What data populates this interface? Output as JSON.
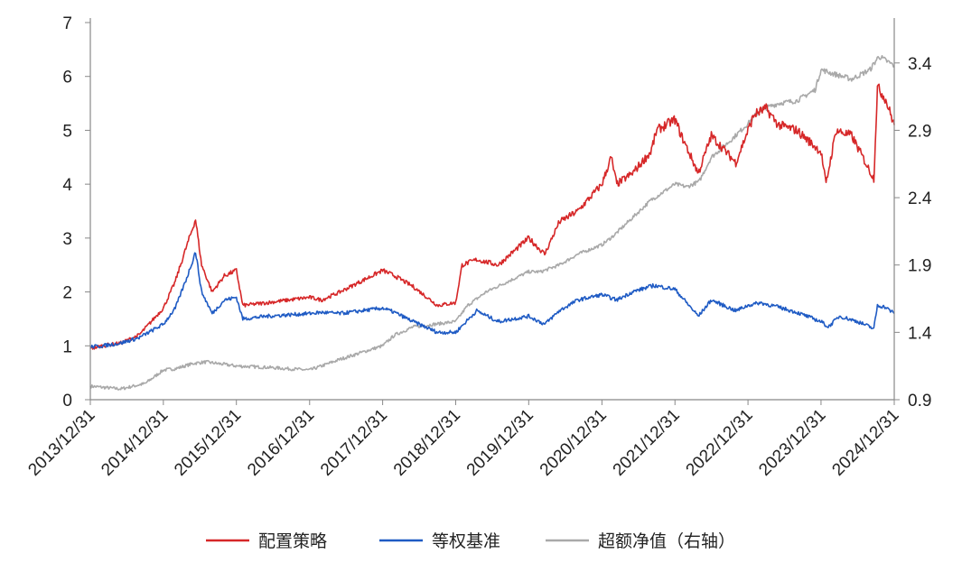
{
  "chart_data": {
    "type": "line",
    "title": "",
    "xlabel": "",
    "ylabel": "",
    "x_ticks": [
      "2013/12/31",
      "2014/12/31",
      "2015/12/31",
      "2016/12/31",
      "2017/12/31",
      "2018/12/31",
      "2019/12/31",
      "2020/12/31",
      "2021/12/31",
      "2022/12/31",
      "2023/12/31",
      "2024/12/31"
    ],
    "x_range": [
      "2013/12/31",
      "2024/12/31"
    ],
    "y_left": {
      "range": [
        0,
        7
      ],
      "ticks": [
        "0",
        "1",
        "2",
        "3",
        "4",
        "5",
        "6",
        "7"
      ]
    },
    "y_right": {
      "range": [
        0.9,
        3.7
      ],
      "ticks": [
        "0.9",
        "1.4",
        "1.9",
        "2.4",
        "2.9",
        "3.4"
      ]
    },
    "grid": false,
    "legend_position": "bottom",
    "series": [
      {
        "name": "配置策略",
        "color": "#d62728",
        "axis": "left",
        "points": [
          [
            "2013/12/31",
            0.95
          ],
          [
            "2014/03/01",
            1.0
          ],
          [
            "2014/06/01",
            1.05
          ],
          [
            "2014/09/01",
            1.2
          ],
          [
            "2014/12/31",
            1.7
          ],
          [
            "2015/03/01",
            2.2
          ],
          [
            "2015/05/01",
            2.9
          ],
          [
            "2015/06/10",
            3.35
          ],
          [
            "2015/07/10",
            2.5
          ],
          [
            "2015/09/01",
            2.0
          ],
          [
            "2015/11/01",
            2.3
          ],
          [
            "2015/12/31",
            2.4
          ],
          [
            "2016/02/01",
            1.75
          ],
          [
            "2016/06/01",
            1.8
          ],
          [
            "2016/12/31",
            1.9
          ],
          [
            "2017/03/01",
            1.85
          ],
          [
            "2017/06/01",
            2.0
          ],
          [
            "2017/12/31",
            2.4
          ],
          [
            "2018/03/01",
            2.3
          ],
          [
            "2018/06/01",
            2.1
          ],
          [
            "2018/10/01",
            1.75
          ],
          [
            "2018/12/31",
            1.8
          ],
          [
            "2019/02/01",
            2.5
          ],
          [
            "2019/04/15",
            2.6
          ],
          [
            "2019/08/01",
            2.5
          ],
          [
            "2019/12/31",
            3.0
          ],
          [
            "2020/03/20",
            2.7
          ],
          [
            "2020/06/01",
            3.3
          ],
          [
            "2020/09/01",
            3.5
          ],
          [
            "2020/12/31",
            4.0
          ],
          [
            "2021/02/15",
            4.5
          ],
          [
            "2021/03/15",
            4.0
          ],
          [
            "2021/06/01",
            4.2
          ],
          [
            "2021/09/01",
            4.6
          ],
          [
            "2021/10/01",
            5.0
          ],
          [
            "2021/12/31",
            5.2
          ],
          [
            "2022/02/01",
            4.9
          ],
          [
            "2022/04/27",
            4.2
          ],
          [
            "2022/07/01",
            4.9
          ],
          [
            "2022/10/31",
            4.4
          ],
          [
            "2022/12/31",
            5.0
          ],
          [
            "2023/02/01",
            5.3
          ],
          [
            "2023/04/01",
            5.4
          ],
          [
            "2023/06/01",
            5.1
          ],
          [
            "2023/09/01",
            5.0
          ],
          [
            "2023/12/31",
            4.6
          ],
          [
            "2024/01/25",
            4.0
          ],
          [
            "2024/03/15",
            5.0
          ],
          [
            "2024/06/01",
            4.9
          ],
          [
            "2024/09/20",
            4.1
          ],
          [
            "2024/10/08",
            5.8
          ],
          [
            "2024/11/15",
            5.6
          ],
          [
            "2024/12/31",
            5.1
          ]
        ]
      },
      {
        "name": "等权基准",
        "color": "#1f5bc4",
        "axis": "left",
        "points": [
          [
            "2013/12/31",
            0.98
          ],
          [
            "2014/03/01",
            1.0
          ],
          [
            "2014/06/01",
            1.05
          ],
          [
            "2014/09/01",
            1.15
          ],
          [
            "2014/12/31",
            1.4
          ],
          [
            "2015/03/01",
            1.7
          ],
          [
            "2015/05/01",
            2.3
          ],
          [
            "2015/06/10",
            2.75
          ],
          [
            "2015/07/10",
            2.0
          ],
          [
            "2015/09/01",
            1.6
          ],
          [
            "2015/11/01",
            1.85
          ],
          [
            "2015/12/31",
            1.9
          ],
          [
            "2016/02/01",
            1.5
          ],
          [
            "2016/06/01",
            1.55
          ],
          [
            "2016/12/31",
            1.6
          ],
          [
            "2017/03/01",
            1.62
          ],
          [
            "2017/06/01",
            1.6
          ],
          [
            "2017/12/31",
            1.7
          ],
          [
            "2018/03/01",
            1.62
          ],
          [
            "2018/06/01",
            1.45
          ],
          [
            "2018/10/01",
            1.25
          ],
          [
            "2018/12/31",
            1.25
          ],
          [
            "2019/04/15",
            1.65
          ],
          [
            "2019/08/01",
            1.45
          ],
          [
            "2019/12/31",
            1.55
          ],
          [
            "2020/03/20",
            1.4
          ],
          [
            "2020/06/01",
            1.65
          ],
          [
            "2020/09/01",
            1.85
          ],
          [
            "2020/12/31",
            1.95
          ],
          [
            "2021/03/15",
            1.85
          ],
          [
            "2021/06/01",
            2.0
          ],
          [
            "2021/09/15",
            2.12
          ],
          [
            "2021/12/31",
            2.05
          ],
          [
            "2022/04/27",
            1.55
          ],
          [
            "2022/07/01",
            1.85
          ],
          [
            "2022/10/31",
            1.65
          ],
          [
            "2022/12/31",
            1.75
          ],
          [
            "2023/03/01",
            1.8
          ],
          [
            "2023/06/01",
            1.72
          ],
          [
            "2023/09/01",
            1.62
          ],
          [
            "2023/12/31",
            1.45
          ],
          [
            "2024/02/05",
            1.35
          ],
          [
            "2024/04/01",
            1.55
          ],
          [
            "2024/07/01",
            1.45
          ],
          [
            "2024/09/20",
            1.32
          ],
          [
            "2024/10/08",
            1.75
          ],
          [
            "2024/11/15",
            1.72
          ],
          [
            "2024/12/31",
            1.6
          ]
        ]
      },
      {
        "name": "超额净值（右轴）",
        "color": "#a9a9a9",
        "axis": "right",
        "points": [
          [
            "2013/12/31",
            1.0
          ],
          [
            "2014/06/01",
            0.98
          ],
          [
            "2014/10/01",
            1.02
          ],
          [
            "2014/12/31",
            1.12
          ],
          [
            "2015/03/01",
            1.13
          ],
          [
            "2015/06/01",
            1.17
          ],
          [
            "2015/08/01",
            1.18
          ],
          [
            "2015/12/31",
            1.15
          ],
          [
            "2016/06/01",
            1.14
          ],
          [
            "2016/12/31",
            1.12
          ],
          [
            "2017/03/01",
            1.15
          ],
          [
            "2017/06/01",
            1.2
          ],
          [
            "2017/12/31",
            1.3
          ],
          [
            "2018/03/01",
            1.38
          ],
          [
            "2018/06/01",
            1.44
          ],
          [
            "2018/12/31",
            1.48
          ],
          [
            "2019/03/01",
            1.6
          ],
          [
            "2019/06/01",
            1.7
          ],
          [
            "2019/12/31",
            1.85
          ],
          [
            "2020/03/01",
            1.85
          ],
          [
            "2020/06/01",
            1.9
          ],
          [
            "2020/09/01",
            1.98
          ],
          [
            "2020/12/31",
            2.05
          ],
          [
            "2021/03/01",
            2.12
          ],
          [
            "2021/06/01",
            2.25
          ],
          [
            "2021/09/01",
            2.38
          ],
          [
            "2021/12/31",
            2.5
          ],
          [
            "2022/03/01",
            2.48
          ],
          [
            "2022/05/01",
            2.52
          ],
          [
            "2022/07/01",
            2.7
          ],
          [
            "2022/10/01",
            2.82
          ],
          [
            "2022/12/31",
            2.95
          ],
          [
            "2023/03/01",
            3.05
          ],
          [
            "2023/06/01",
            3.1
          ],
          [
            "2023/09/01",
            3.12
          ],
          [
            "2023/12/01",
            3.2
          ],
          [
            "2023/12/31",
            3.35
          ],
          [
            "2024/03/01",
            3.32
          ],
          [
            "2024/06/01",
            3.28
          ],
          [
            "2024/09/01",
            3.35
          ],
          [
            "2024/10/15",
            3.45
          ],
          [
            "2024/12/31",
            3.38
          ]
        ]
      }
    ]
  }
}
